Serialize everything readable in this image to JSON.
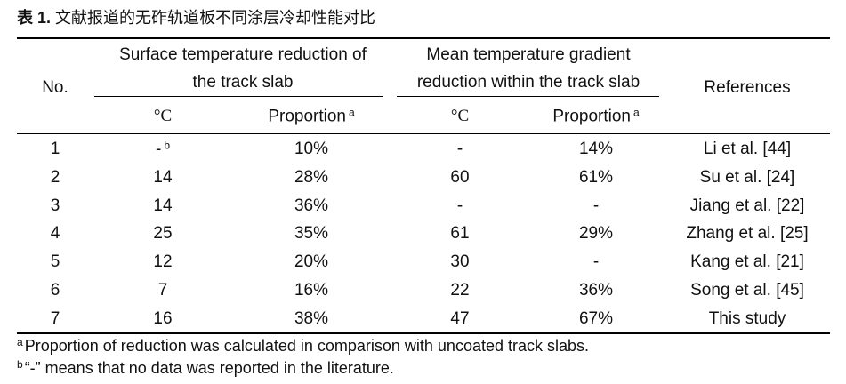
{
  "caption": {
    "label": "表 1.",
    "text": "文献报道的无砟轨道板不同涂层冷却性能对比"
  },
  "table": {
    "header": {
      "no": "No.",
      "group1": [
        "Surface temperature reduction of",
        "the track slab"
      ],
      "group2": [
        "Mean temperature gradient",
        "reduction within the track slab"
      ],
      "references": "References",
      "sub": [
        {
          "text": "°C"
        },
        {
          "text": "Proportion",
          "sup": "a"
        },
        {
          "text": "°C"
        },
        {
          "text": "Proportion",
          "sup": "a"
        }
      ]
    },
    "rows": [
      [
        {
          "text": "1"
        },
        {
          "text": "-",
          "sup": "b"
        },
        {
          "text": "10%"
        },
        {
          "text": "-"
        },
        {
          "text": "14%"
        },
        {
          "text": "Li et al. [44]"
        }
      ],
      [
        {
          "text": "2"
        },
        {
          "text": "14"
        },
        {
          "text": "28%"
        },
        {
          "text": "60"
        },
        {
          "text": "61%"
        },
        {
          "text": "Su et al. [24]"
        }
      ],
      [
        {
          "text": "3"
        },
        {
          "text": "14"
        },
        {
          "text": "36%"
        },
        {
          "text": "-"
        },
        {
          "text": "-"
        },
        {
          "text": "Jiang et al. [22]"
        }
      ],
      [
        {
          "text": "4"
        },
        {
          "text": "25"
        },
        {
          "text": "35%"
        },
        {
          "text": "61"
        },
        {
          "text": "29%"
        },
        {
          "text": "Zhang et al. [25]"
        }
      ],
      [
        {
          "text": "5"
        },
        {
          "text": "12"
        },
        {
          "text": "20%"
        },
        {
          "text": "30"
        },
        {
          "text": "-"
        },
        {
          "text": "Kang et al. [21]"
        }
      ],
      [
        {
          "text": "6"
        },
        {
          "text": "7"
        },
        {
          "text": "16%"
        },
        {
          "text": "22"
        },
        {
          "text": "36%"
        },
        {
          "text": "Song et al. [45]"
        }
      ],
      [
        {
          "text": "7"
        },
        {
          "text": "16"
        },
        {
          "text": "38%"
        },
        {
          "text": "47"
        },
        {
          "text": "67%"
        },
        {
          "text": "This study"
        }
      ]
    ]
  },
  "footnotes": [
    {
      "marker": "a",
      "text": "Proportion of reduction was calculated in comparison with uncoated track slabs."
    },
    {
      "marker": "b",
      "text": "“-” means that no data was reported in the literature."
    }
  ]
}
